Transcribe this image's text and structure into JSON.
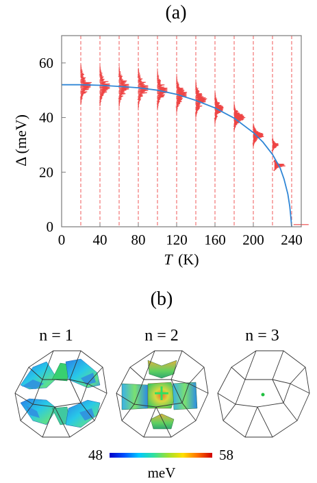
{
  "panel_a_label": "(a)",
  "panel_b_label": "(b)",
  "colors": {
    "fit_line": "#2f86d6",
    "histogram": "#ee4545",
    "dashed_line": "#ee4545",
    "frame": "#7a7a7a"
  },
  "chart_data": [
    {
      "type": "line",
      "xlabel_symbol": "T",
      "xlabel_unit": "(K)",
      "ylabel": "Δ (meV)",
      "xlim": [
        0,
        250
      ],
      "ylim": [
        0,
        70
      ],
      "xticks": [
        0,
        40,
        80,
        120,
        160,
        200,
        240
      ],
      "yticks": [
        0,
        20,
        40,
        60
      ],
      "grid": false,
      "series": [
        {
          "kind": "BCS-like fit curve",
          "x": [
            0,
            20,
            40,
            60,
            80,
            100,
            120,
            140,
            160,
            180,
            200,
            210,
            220,
            228,
            232,
            236,
            238,
            239,
            240
          ],
          "y": [
            52,
            52,
            51.8,
            51.4,
            50.9,
            50.0,
            48.5,
            46.3,
            43.5,
            39.8,
            34.5,
            31.0,
            26.5,
            21.5,
            17.5,
            12.0,
            7.5,
            4.0,
            0
          ]
        }
      ],
      "histograms": [
        {
          "T": 20,
          "center": 52.0,
          "spread": 4.5,
          "height": 1.0
        },
        {
          "T": 40,
          "center": 51.5,
          "spread": 4.5,
          "height": 1.0
        },
        {
          "T": 60,
          "center": 51.3,
          "spread": 4.5,
          "height": 1.0
        },
        {
          "T": 80,
          "center": 50.8,
          "spread": 4.5,
          "height": 1.0
        },
        {
          "T": 100,
          "center": 50.0,
          "spread": 4.2,
          "height": 1.0
        },
        {
          "T": 120,
          "center": 48.5,
          "spread": 4.0,
          "height": 1.0
        },
        {
          "T": 140,
          "center": 46.5,
          "spread": 4.0,
          "height": 1.0
        },
        {
          "T": 160,
          "center": 43.5,
          "spread": 3.5,
          "height": 0.8
        },
        {
          "T": 180,
          "center": 40.0,
          "spread": 3.0,
          "height": 1.0
        },
        {
          "T": 200,
          "center": 33.5,
          "spread": 2.5,
          "height": 1.0
        },
        {
          "T": 220,
          "center": 30.0,
          "spread": 1.5,
          "height": 0.6
        },
        {
          "T": 222,
          "center": 22.5,
          "spread": 1.2,
          "height": 1.0
        },
        {
          "T": 242,
          "center": 0.8,
          "spread": 0.3,
          "height": 1.0
        }
      ],
      "dashed_lines_T": [
        20,
        40,
        60,
        80,
        100,
        120,
        140,
        160,
        180,
        200,
        220,
        240
      ]
    },
    {
      "type": "heatmap",
      "subpanels": [
        "n = 1",
        "n = 2",
        "n = 3"
      ],
      "colorbar_min": "48",
      "colorbar_max": "58",
      "colorbar_unit": "meV",
      "colorbar_colors": [
        "#0000c8",
        "#0050ff",
        "#00c8ff",
        "#30e0a0",
        "#a0e030",
        "#ffe000",
        "#ff7000",
        "#d00000"
      ]
    }
  ]
}
